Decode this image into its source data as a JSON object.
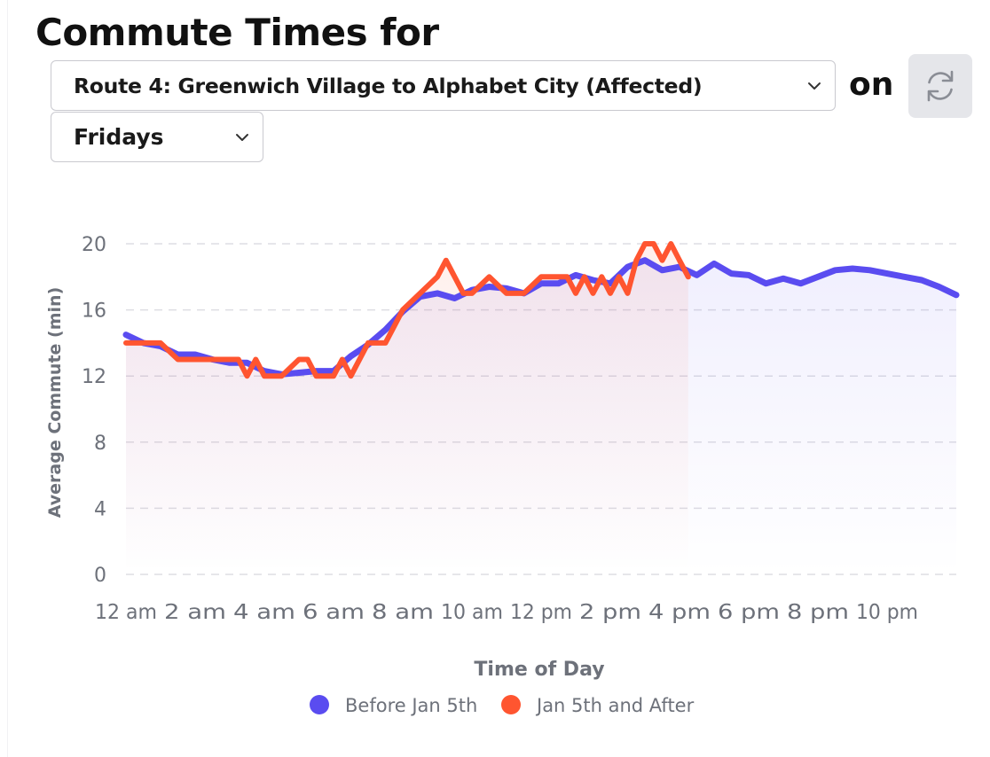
{
  "header": {
    "title": "Commute Times for",
    "route_select_value": "Route 4: Greenwich Village to Alphabet City (Affected)",
    "on_label": "on",
    "day_select_value": "Fridays"
  },
  "colors": {
    "before": "#5a4cf0",
    "after": "#ff5530",
    "grid": "#dedee3",
    "axis_text": "#6d717a"
  },
  "icons": {
    "refresh": "refresh-icon",
    "chevron": "chevron-down-icon"
  },
  "chart_data": {
    "type": "line",
    "xlabel": "Time of Day",
    "ylabel": "Average Commute (min)",
    "ylim": [
      0,
      20
    ],
    "yticks": [
      0,
      4,
      8,
      12,
      16,
      20
    ],
    "xlim": [
      0,
      24
    ],
    "x_unit": "hour of day",
    "xtick_labels": [
      "12 am",
      "2 am",
      "4 am",
      "6 am",
      "8 am",
      "10 am",
      "12 pm",
      "2 pm",
      "4 pm",
      "6 pm",
      "8 pm",
      "10 pm"
    ],
    "grid": true,
    "legend_position": "bottom-center",
    "series": [
      {
        "name": "Before Jan 5th",
        "x": [
          0,
          0.5,
          1,
          1.5,
          2,
          2.5,
          3,
          3.5,
          4,
          4.5,
          5,
          5.5,
          6,
          6.5,
          7,
          7.5,
          8,
          8.5,
          9,
          9.5,
          10,
          10.5,
          11,
          11.5,
          12,
          12.5,
          13,
          13.5,
          14,
          14.5,
          15,
          15.5,
          16,
          16.5,
          17,
          17.5,
          18,
          18.5,
          19,
          19.5,
          20,
          20.5,
          21,
          21.5,
          22,
          22.5,
          23,
          23.5,
          24
        ],
        "y": [
          14.5,
          14.0,
          13.8,
          13.3,
          13.3,
          13.0,
          12.8,
          12.8,
          12.3,
          12.1,
          12.2,
          12.3,
          12.3,
          13.2,
          13.9,
          14.8,
          15.9,
          16.8,
          17.0,
          16.7,
          17.2,
          17.4,
          17.3,
          17.0,
          17.6,
          17.6,
          18.1,
          17.8,
          17.6,
          18.6,
          19.0,
          18.4,
          18.6,
          18.1,
          18.8,
          18.2,
          18.1,
          17.6,
          17.9,
          17.6,
          18.0,
          18.4,
          18.5,
          18.4,
          18.2,
          18.0,
          17.8,
          17.4,
          16.9
        ]
      },
      {
        "name": "Jan 5th and After",
        "x": [
          0,
          0.5,
          1,
          1.5,
          2,
          2.5,
          3,
          3.25,
          3.5,
          3.75,
          4,
          4.5,
          5,
          5.25,
          5.5,
          6,
          6.25,
          6.5,
          7,
          7.5,
          8,
          8.5,
          9,
          9.25,
          9.5,
          9.75,
          10,
          10.5,
          11,
          11.5,
          12,
          12.5,
          12.75,
          13,
          13.25,
          13.5,
          13.75,
          14,
          14.25,
          14.5,
          14.75,
          15,
          15.25,
          15.5,
          15.75,
          16,
          16.25
        ],
        "y": [
          14,
          14,
          14,
          13,
          13,
          13,
          13,
          13,
          12,
          13,
          12,
          12,
          13,
          13,
          12,
          12,
          13,
          12,
          14,
          14,
          16,
          17,
          18,
          19,
          18,
          17,
          17,
          18,
          17,
          17,
          18,
          18,
          18,
          17,
          18,
          17,
          18,
          17,
          18,
          17,
          19,
          20,
          20,
          19,
          20,
          19,
          18
        ]
      }
    ]
  }
}
